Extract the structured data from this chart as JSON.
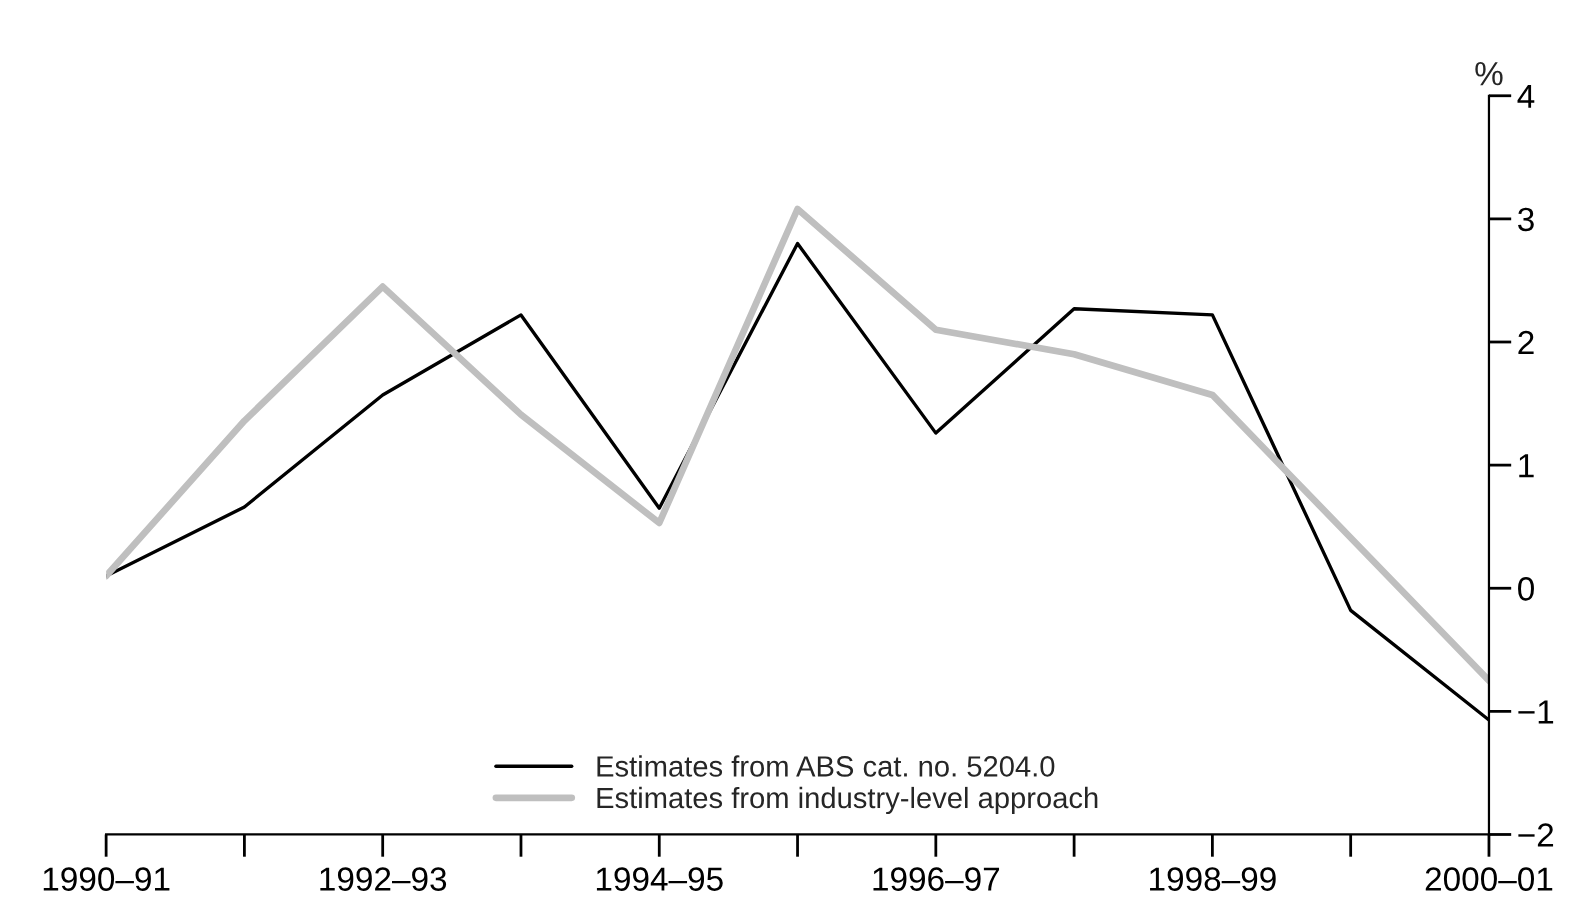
{
  "chart_data": {
    "type": "line",
    "categories": [
      "1990–91",
      null,
      "1992–93",
      null,
      "1994–95",
      null,
      "1996–97",
      null,
      "1998–99",
      null,
      "2000–01"
    ],
    "ylabel": "%",
    "ylim": [
      -2,
      4
    ],
    "yticks": [
      -2,
      -1,
      0,
      1,
      2,
      3,
      4
    ],
    "series": [
      {
        "name": "Estimates from ABS cat. no. 5204.0",
        "color": "#000000",
        "values": [
          0.1,
          0.66,
          1.57,
          2.22,
          0.65,
          2.8,
          1.26,
          2.27,
          2.22,
          -0.18,
          -1.07
        ]
      },
      {
        "name": "Estimates from industry-level approach",
        "color": "#bfbfbf",
        "values": [
          0.1,
          1.36,
          2.45,
          1.41,
          0.53,
          3.08,
          2.1,
          1.9,
          1.57,
          0.41,
          -0.75
        ]
      }
    ],
    "legend": "bottom",
    "grid": false,
    "marker": "none",
    "line_style": "solid"
  }
}
